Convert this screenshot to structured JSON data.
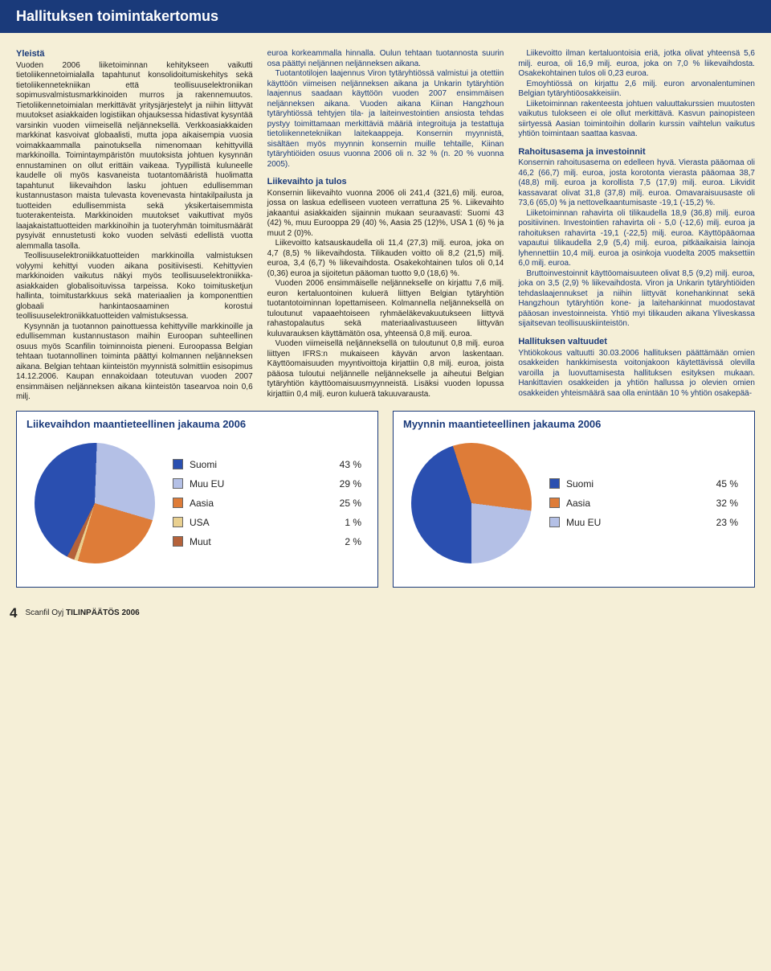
{
  "header": {
    "title": "Hallituksen toimintakertomus"
  },
  "sections": {
    "s1_title": "Yleistä",
    "s1_body": "Vuoden 2006 liiketoiminnan kehitykseen vaikutti tietoliikennetoimialalla tapahtunut konsolidoitumiskehitys sekä tietoliikennetekniikan että teollisuuselektroniikan sopimusvalmistusmarkkinoiden murros ja rakennemuutos. Tietoliikennetoimialan merkittävät yritysjärjestelyt ja niihin liittyvät muutokset asiakkaiden logistiikan ohjauksessa hidastivat kysyntää varsinkin vuoden viimeisellä neljänneksellä. Verkkoasiakkaiden markkinat kasvoivat globaalisti, mutta jopa aikaisempia vuosia voimakkaammalla painotuksella nimenomaan kehittyvillä markkinoilla. Toimintaympäristön muutoksista johtuen kysynnän ennustaminen on ollut erittäin vaikeaa. Tyypillistä kuluneelle kaudelle oli myös kasvaneista tuotantomääristä huolimatta tapahtunut liikevaihdon lasku johtuen edullisemman kustannustason maista tulevasta kovenevasta hintakilpailusta ja tuotteiden edullisemmista sekä yksikertaisemmista tuoterakenteista. Markkinoiden muutokset vaikuttivat myös laajakaistattuotteiden markkinoihin ja tuoteryhmän toimitusmäärät pysyivät ennustetusti koko vuoden selvästi edellistä vuotta alemmalla tasolla.",
    "s1_p2": "Teollisuuselektroniikkatuotteiden markkinoilla valmistuksen volyymi kehittyi vuoden aikana positiivisesti. Kehittyvien markkinoiden vaikutus näkyi myös teollisuuselektroniikka-asiakkaiden globalisoituvissa tarpeissa. Koko toimitusketjun hallinta, toimitustarkkuus sekä materiaalien ja komponenttien globaali hankintaosaaminen korostui teollisuuselektroniikkatuotteiden valmistuksessa.",
    "s1_p3": "Kysynnän ja tuotannon painottuessa kehittyville markkinoille ja edullisemman kustannustason maihin Euroopan suhteellinen osuus myös Scanfilin toiminnoista pieneni. Euroopassa Belgian tehtaan tuotannollinen toiminta päättyi kolmannen neljänneksen aikana. Belgian tehtaan kiinteistön myynnistä solmittiin esisopimus 14.12.2006. Kaupan ennakoidaan toteutuvan vuoden 2007 ensimmäisen neljänneksen aikana kiinteistön tasearvoa noin 0,6 milj.",
    "s1_p4_blue": "euroa korkeammalla hinnalla. Oulun tehtaan tuotannosta suurin osa päättyi neljännen neljänneksen aikana.",
    "s1_p5_blue": "Tuotantotilojen laajennus Viron tytäryhtiössä valmistui ja otettiin käyttöön viimeisen neljänneksen aikana ja Unkarin tytäryhtiön laajennus saadaan käyttöön vuoden 2007 ensimmäisen neljänneksen aikana. Vuoden aikana Kiinan Hangzhoun tytäryhtiössä tehtyjen tila- ja laiteinvestointien ansiosta tehdas pystyy toimittamaan merkittäviä määriä integroituja ja testattuja tietoliikennetekniikan laitekaappeja. Konsernin myynnistä, sisältäen myös myynnin konsernin muille tehtaille, Kiinan tytäryhtiöiden osuus vuonna 2006 oli n. 32 % (n. 20 % vuonna 2005).",
    "s2_title": "Liikevaihto ja tulos",
    "s2_body": "Konsernin liikevaihto vuonna 2006 oli 241,4 (321,6) milj. euroa, jossa on laskua edelliseen vuoteen verrattuna 25 %. Liikevaihto jakaantui asiakkaiden sijainnin mukaan seuraavasti: Suomi 43 (42) %, muu Eurooppa 29 (40) %, Aasia 25 (12)%, USA 1 (6) % ja muut 2 (0)%.",
    "s2_p2": "Liikevoitto katsauskaudella oli 11,4 (27,3) milj. euroa, joka on 4,7 (8,5) % liikevaihdosta. Tilikauden voitto oli 8,2 (21,5) milj. euroa, 3,4 (6,7) % liikevaihdosta. Osakekohtainen tulos oli 0,14 (0,36) euroa ja sijoitetun pääoman tuotto 9,0 (18,6) %.",
    "s2_p3": "Vuoden 2006 ensimmäiselle neljännekselle on kirjattu 7,6 milj. euron kertaluontoinen kuluerä liittyen Belgian tytäryhtiön tuotantotoiminnan lopettamiseen. Kolmannella neljänneksellä on tuloutunut vapaaehtoiseen ryhmäeläkevakuutukseen liittyvä rahastopalautus sekä materiaalivastuuseen liittyvän kuluvarauksen käyttämätön osa, yhteensä 0,8 milj. euroa.",
    "s2_p4": "Vuoden viimeisellä neljänneksellä on tuloutunut 0,8 milj. euroa liittyen IFRS:n mukaiseen käyvän arvon laskentaan. Käyttöomaisuuden myyntivoittoja kirjattiin 0,8 milj. euroa, joista pääosa tuloutui neljännelle neljännekselle ja aiheutui Belgian tytäryhtiön käyttöomaisuusmyynneistä. Lisäksi vuoden lopussa kirjattiin 0,4 milj. euron kuluerä takuuvarausta.",
    "s2_p5": "Liikevoitto ilman kertaluontoisia eriä, jotka olivat yhteensä 5,6 milj. euroa, oli 16,9 milj. euroa, joka on 7,0 % liikevaihdosta. Osakekohtainen tulos oli 0,23 euroa.",
    "s2_p6": "Emoyhtiössä on kirjattu 2,6 milj. euron arvonalentuminen Belgian tytäryhtiöosakkeisiin.",
    "s2_p7": "Liiketoiminnan rakenteesta johtuen valuuttakurssien muutosten vaikutus tulokseen ei ole ollut merkittävä. Kasvun painopisteen siirtyessä Aasian toimintoihin dollarin kurssin vaihtelun vaikutus yhtiön toimintaan saattaa kasvaa.",
    "s3_title": "Rahoitusasema ja investoinnit",
    "s3_body": "Konsernin rahoitusasema on edelleen hyvä. Vierasta pääomaa oli 46,2 (66,7) milj. euroa, josta korotonta vierasta pääomaa 38,7 (48,8) milj. euroa ja korollista 7,5 (17,9) milj. euroa. Likvidit kassavarat olivat 31,8 (37,8) milj. euroa. Omavaraisuusaste oli 73,6 (65,0) % ja nettovelkaantumisaste -19,1 (-15,2) %.",
    "s3_p2": "Liiketoiminnan rahavirta oli tilikaudella 18,9 (36,8) milj. euroa positiivinen. Investointien rahavirta oli - 5,0 (-12,6) milj. euroa ja rahoituksen rahavirta -19,1 (-22,5) milj. euroa. Käyttöpääomaa vapautui tilikaudella 2,9 (5,4) milj. euroa, pitkäaikaisia lainoja lyhennettiin 10,4 milj. euroa ja osinkoja vuodelta 2005 maksettiin 6,0 milj. euroa.",
    "s3_p3": "Bruttoinvestoinnit käyttöomaisuuteen olivat 8,5 (9,2) milj. euroa, joka on 3,5 (2,9) % liikevaihdosta. Viron ja Unkarin tytäryhtiöiden tehdaslaajennukset ja niihin liittyvät konehankinnat sekä Hangzhoun tytäryhtiön kone- ja laitehankinnat muodostavat pääosan investoinneista. Yhtiö myi tilikauden aikana Yliveskassa sijaitsevan teollisuuskiinteistön.",
    "s4_title": "Hallituksen valtuudet",
    "s4_body": "Yhtiökokous valtuutti 30.03.2006 hallituksen päättämään omien osakkeiden hankkimisesta voitonjakoon käytettävissä olevilla varoilla ja luovuttamisesta hallituksen esityksen mukaan. Hankittavien osakkeiden ja yhtiön hallussa jo olevien omien osakkeiden yhteismäärä saa olla enintään 10 % yhtiön osakepää-"
  },
  "chart1": {
    "title": "Liikevaihdon maantieteellinen jakauma 2006",
    "items": [
      {
        "label": "Suomi",
        "val": "43 %",
        "color": "#2a4fb0"
      },
      {
        "label": "Muu EU",
        "val": "29 %",
        "color": "#b4c0e6"
      },
      {
        "label": "Aasia",
        "val": "25 %",
        "color": "#de7c38"
      },
      {
        "label": "USA",
        "val": "1 %",
        "color": "#e9d090"
      },
      {
        "label": "Muut",
        "val": "2 %",
        "color": "#b5623a"
      }
    ],
    "gradient": "conic-gradient(from 200deg, #b5623a 0deg 7.2deg, #2a4fb0 7.2deg 162deg, #b4c0e6 162deg 266.4deg, #de7c38 266.4deg 356.4deg, #e9d090 356.4deg 360deg)"
  },
  "chart2": {
    "title": "Myynnin maantieteellinen jakauma 2006",
    "items": [
      {
        "label": "Suomi",
        "val": "45 %",
        "color": "#2a4fb0"
      },
      {
        "label": "Aasia",
        "val": "32 %",
        "color": "#de7c38"
      },
      {
        "label": "Muu EU",
        "val": "23 %",
        "color": "#b4c0e6"
      }
    ],
    "gradient": "conic-gradient(from 180deg, #2a4fb0 0deg 162deg, #de7c38 162deg 277.2deg, #b4c0e6 277.2deg 360deg)"
  },
  "footer": {
    "page": "4",
    "company": "Scanfil Oyj",
    "doc": "TILINPÄÄTÖS 2006"
  }
}
